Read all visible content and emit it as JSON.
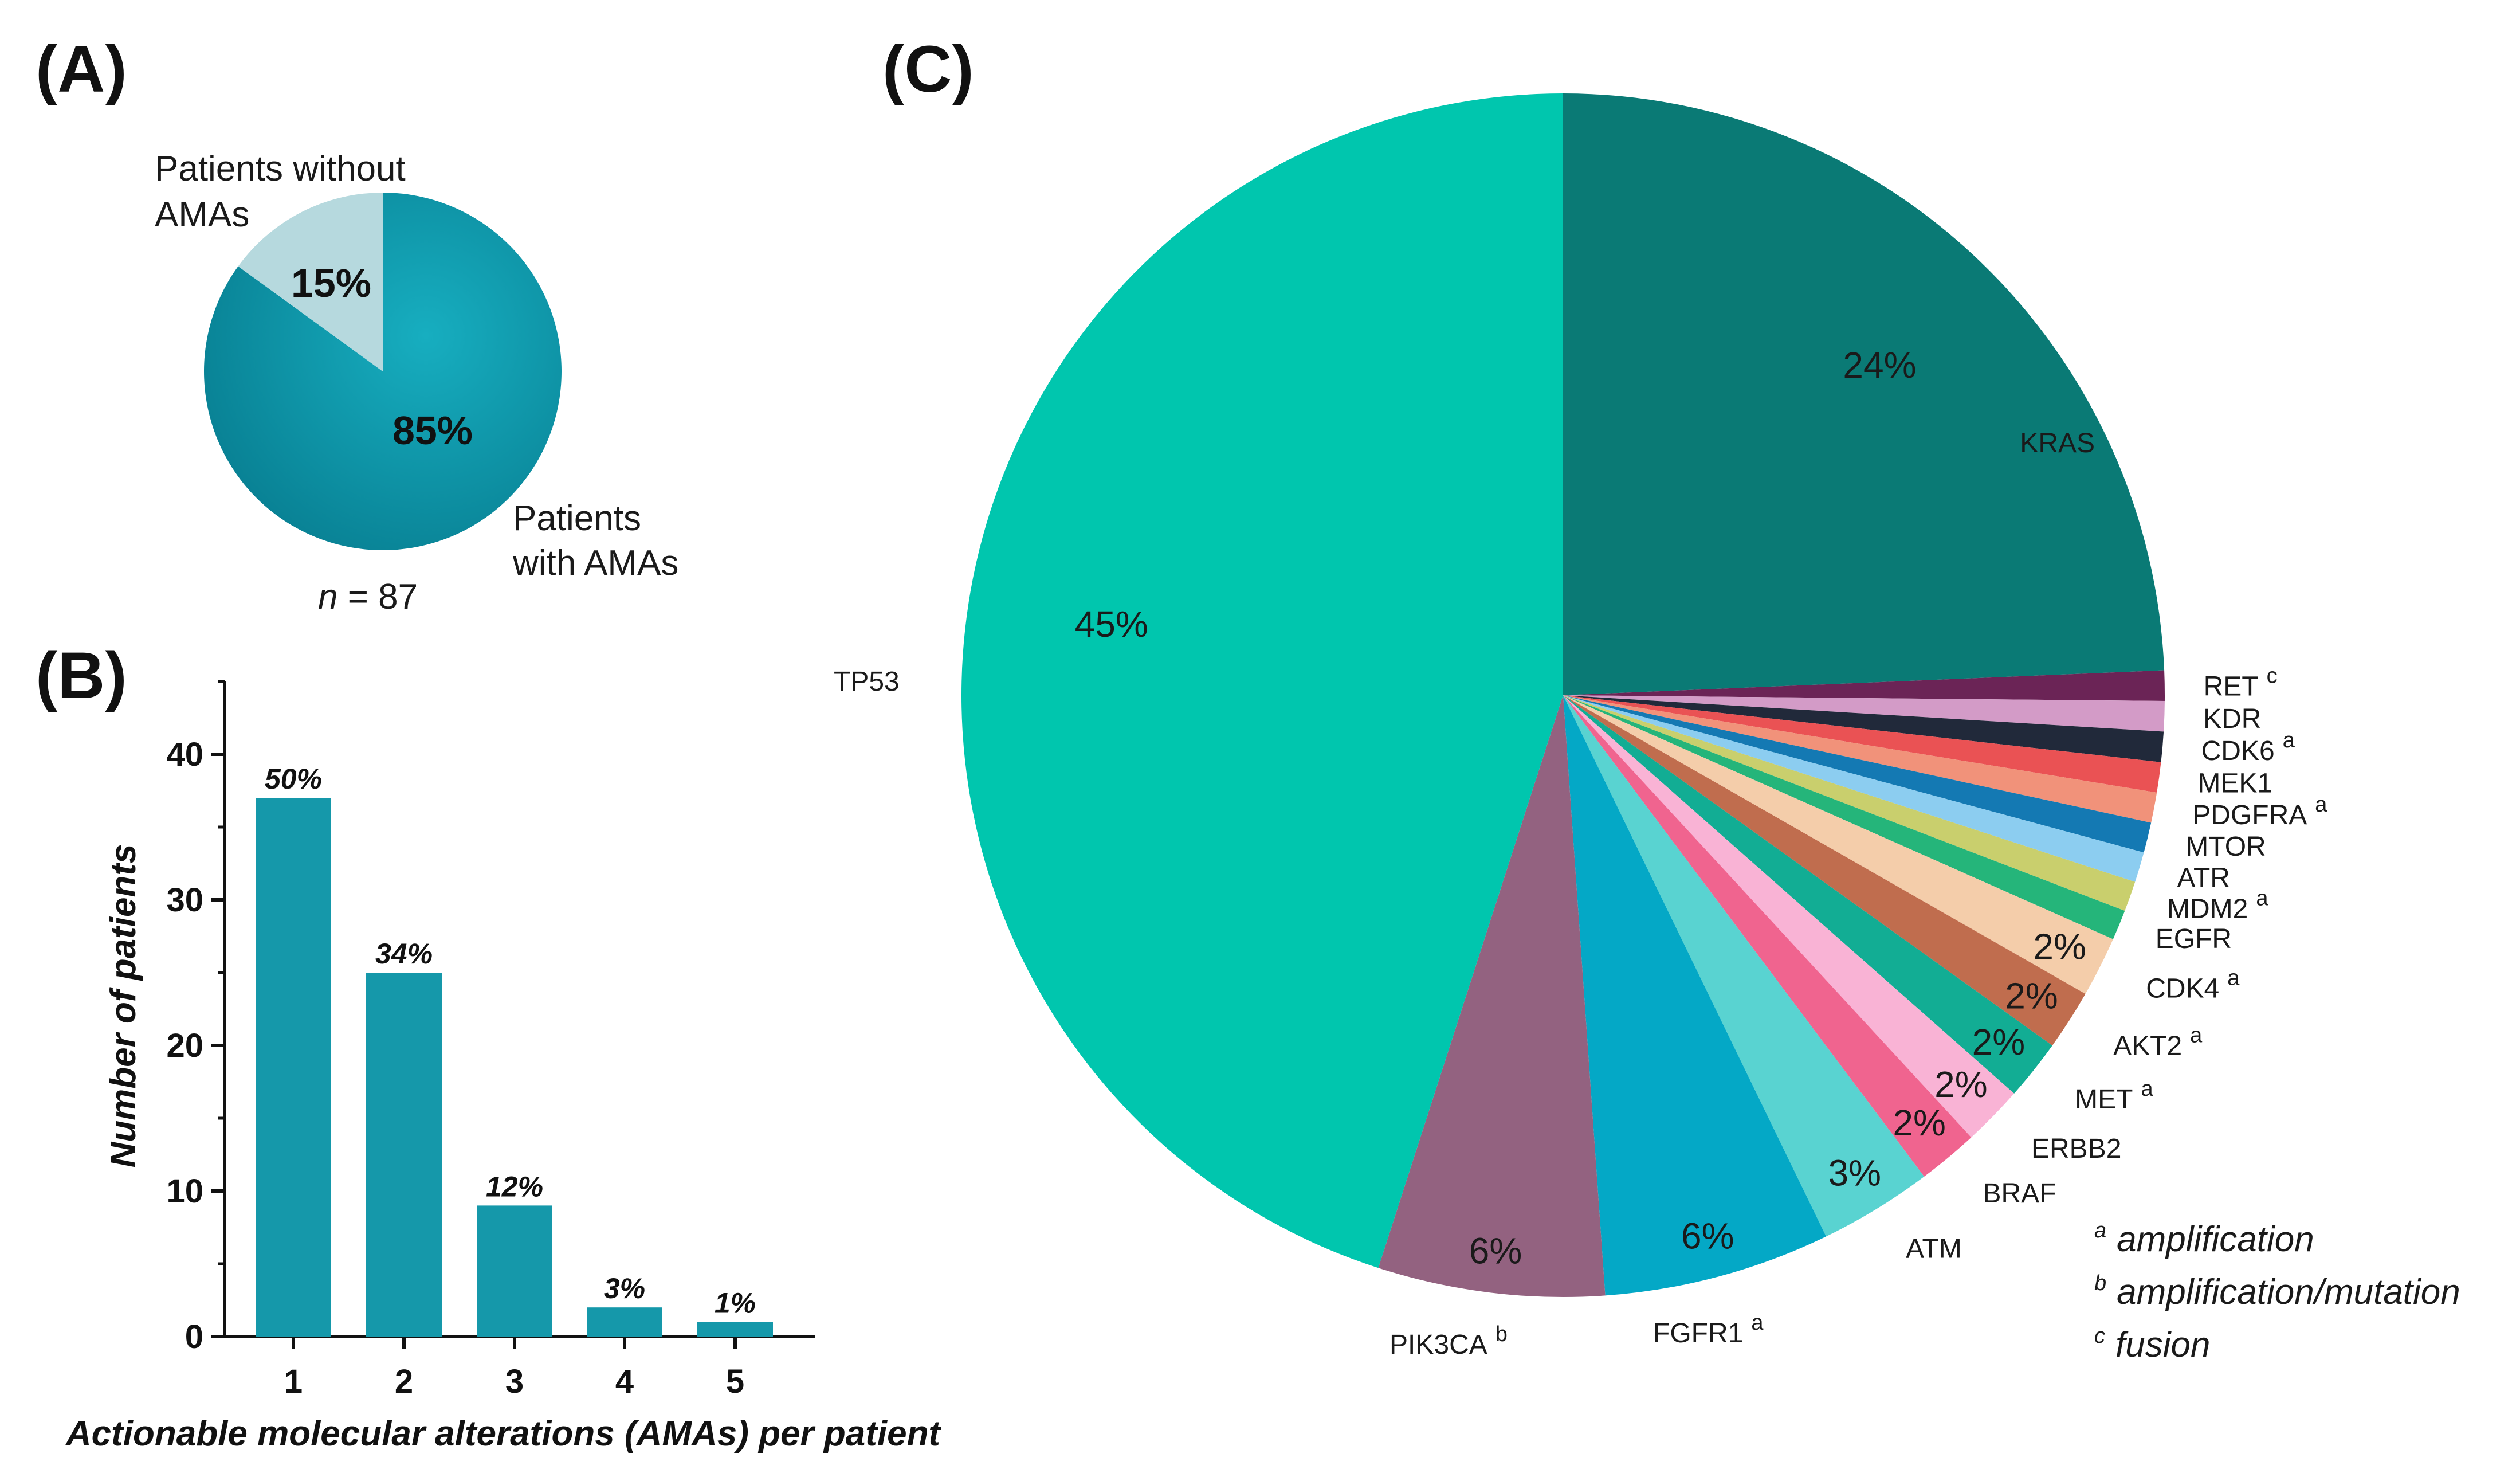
{
  "panels": {
    "a": "(A)",
    "b": "(B)",
    "c": "(C)"
  },
  "chart_data": [
    {
      "type": "pie",
      "panel": "(A)",
      "slices": [
        {
          "label_line1": "Patients",
          "label_line2": "with AMAs",
          "value": 85,
          "pct_label": "85%",
          "color": "#0e97ab"
        },
        {
          "label_line1": "Patients without",
          "label_line2": "AMAs",
          "value": 15,
          "pct_label": "15%",
          "color": "#b6d9de"
        }
      ],
      "n_label_italic": "n",
      "n_label_rest": " = 87"
    },
    {
      "type": "bar",
      "panel": "(B)",
      "categories": [
        "1",
        "2",
        "3",
        "4",
        "5"
      ],
      "values": [
        37,
        25,
        9,
        2,
        1
      ],
      "bar_labels": [
        "50%",
        "34%",
        "12%",
        "3%",
        "1%"
      ],
      "xlabel": "Actionable molecular alterations (AMAs) per patient",
      "ylabel": "Number of patients",
      "ylim": [
        0,
        45
      ],
      "yticks": [
        "0",
        "10",
        "20",
        "30",
        "40"
      ],
      "bar_color": "#1598aa"
    },
    {
      "type": "pie",
      "panel": "(C)",
      "slices": [
        {
          "gene": "KRAS",
          "sup": "",
          "value": 24,
          "pct_label": "24%",
          "color": "#0a7a75"
        },
        {
          "gene": "RET",
          "sup": "c",
          "value": 0.8,
          "pct_label": "",
          "color": "#6b2456"
        },
        {
          "gene": "KDR",
          "sup": "",
          "value": 0.8,
          "pct_label": "",
          "color": "#d39bc7"
        },
        {
          "gene": "CDK6",
          "sup": "a",
          "value": 0.8,
          "pct_label": "",
          "color": "#21293a"
        },
        {
          "gene": "MEK1",
          "sup": "",
          "value": 0.8,
          "pct_label": "",
          "color": "#ea5254"
        },
        {
          "gene": "PDGFRA",
          "sup": "a",
          "value": 0.8,
          "pct_label": "",
          "color": "#f1927a"
        },
        {
          "gene": "MTOR",
          "sup": "",
          "value": 0.8,
          "pct_label": "",
          "color": "#1479b3"
        },
        {
          "gene": "ATR",
          "sup": "",
          "value": 0.8,
          "pct_label": "",
          "color": "#8ccdf0"
        },
        {
          "gene": "MDM2",
          "sup": "a",
          "value": 0.8,
          "pct_label": "",
          "color": "#c9cf6d"
        },
        {
          "gene": "EGFR",
          "sup": "",
          "value": 0.8,
          "pct_label": "",
          "color": "#25b57a"
        },
        {
          "gene": "CDK4",
          "sup": "a",
          "value": 1.6,
          "pct_label": "2%",
          "color": "#f4cdaa"
        },
        {
          "gene": "AKT2",
          "sup": "a",
          "value": 1.6,
          "pct_label": "2%",
          "color": "#c06d4e"
        },
        {
          "gene": "MET",
          "sup": "a",
          "value": 1.6,
          "pct_label": "2%",
          "color": "#12ad94"
        },
        {
          "gene": "ERBB2",
          "sup": "",
          "value": 1.6,
          "pct_label": "2%",
          "color": "#f9b3d5"
        },
        {
          "gene": "BRAF",
          "sup": "",
          "value": 1.6,
          "pct_label": "2%",
          "color": "#f0648f"
        },
        {
          "gene": "ATM",
          "sup": "",
          "value": 3,
          "pct_label": "3%",
          "color": "#59d3d1"
        },
        {
          "gene": "FGFR1",
          "sup": "a",
          "value": 6,
          "pct_label": "6%",
          "color": "#04a8c6"
        },
        {
          "gene": "PIK3CA",
          "sup": "b",
          "value": 6,
          "pct_label": "6%",
          "color": "#936280"
        },
        {
          "gene": "TP53",
          "sup": "",
          "value": 44.4,
          "pct_label": "45%",
          "color": "#00c6ae"
        }
      ],
      "legend": [
        {
          "sup": "a",
          "text": "amplification"
        },
        {
          "sup": "b",
          "text": "amplification/mutation"
        },
        {
          "sup": "c",
          "text": "fusion"
        }
      ]
    }
  ]
}
